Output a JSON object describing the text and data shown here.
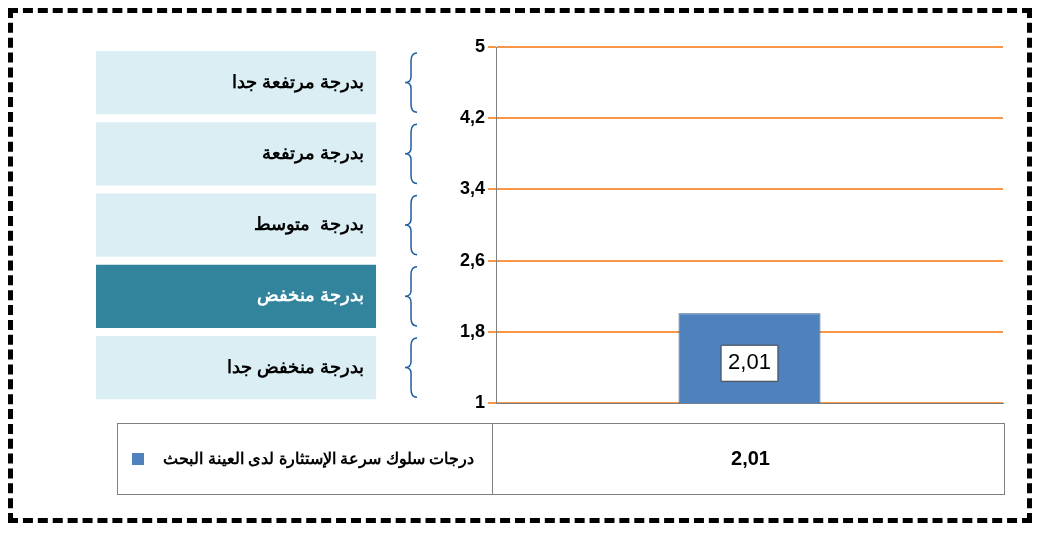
{
  "chart_data": {
    "type": "bar",
    "categories": [
      null
    ],
    "series": [
      {
        "name": "درجات سلوك سرعة الإستثارة  لدى العينة البحث",
        "color": "#4f81bd",
        "values": [
          2.01
        ],
        "value_labels": [
          "2,01"
        ]
      }
    ],
    "ylim": [
      1,
      5
    ],
    "yticks": [
      1,
      {
        "value": 1.8,
        "label": "1,8"
      },
      {
        "value": 2.6,
        "label": "2,6"
      },
      {
        "value": 3.4,
        "label": "3,4"
      },
      {
        "value": 4.2,
        "label": "4,2"
      },
      5
    ],
    "annotations": [
      "بدرجة مرتفعة جدا",
      "بدرجة مرتفعة",
      "بدرجة  متوسط",
      "بدرجة منخفض",
      "بدرجة منخفض جدا"
    ],
    "grid": "y",
    "legend": "bottom"
  }
}
